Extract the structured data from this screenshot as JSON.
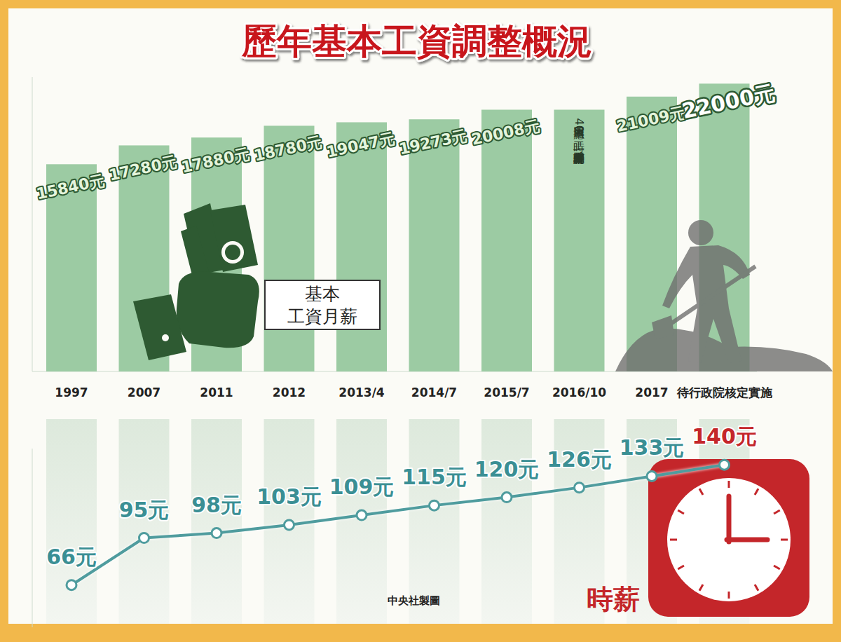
{
  "chart_data": [
    {
      "type": "bar",
      "title": "歷年基本工資調整概況",
      "categories": [
        "1997",
        "2007",
        "2011",
        "2012",
        "2013/4",
        "2014/7",
        "2015/7",
        "2016/10",
        "2017",
        "待行政院核定實施"
      ],
      "values": [
        15840,
        17280,
        17880,
        18780,
        19047,
        19273,
        20008,
        20008,
        21009,
        22000
      ],
      "value_labels": [
        "15840元",
        "17280元",
        "17880元",
        "18780元",
        "19047元",
        "19273元",
        "20008元",
        null,
        "21009元",
        "22000元"
      ],
      "color": "#9ccba3",
      "ylim": [
        0,
        22500
      ],
      "tick_labels": "x",
      "data_labels": true,
      "annotations": [
        "基本工資月薪",
        "因應單週40工時，僅調整基本工資時薪"
      ]
    },
    {
      "type": "line",
      "values": [
        66,
        95,
        98,
        103,
        109,
        115,
        120,
        126,
        133,
        140
      ],
      "value_labels": [
        "66元",
        "95元",
        "98元",
        "103元",
        "109元",
        "115元",
        "120元",
        "126元",
        "133元",
        "140元"
      ],
      "color": "#4f9c9e",
      "marker": "circle",
      "ylim": [
        40,
        150
      ],
      "tick_labels": false,
      "data_labels": true,
      "annotations": [
        "時薪",
        "中央社製圖"
      ]
    }
  ]
}
